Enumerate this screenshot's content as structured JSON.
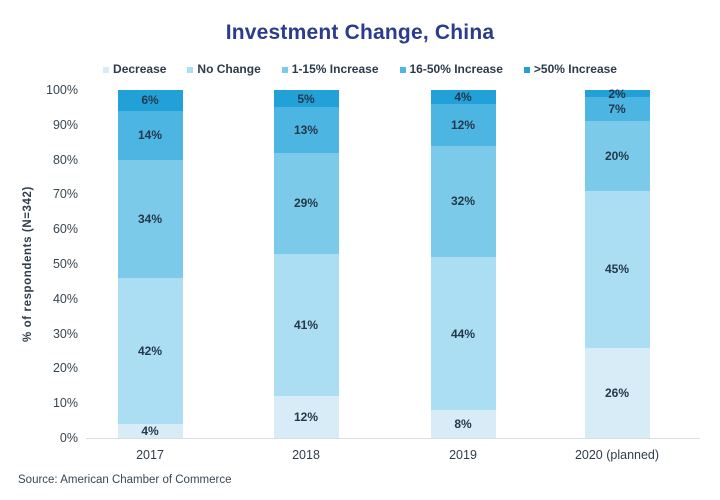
{
  "title": "Investment Change, China",
  "source_note": "Source: American Chamber of Commerce",
  "colors": {
    "title_navy": "#2b3c8c",
    "label_dark": "#24384a",
    "axis_gray": "#d9dde0"
  },
  "chart_data": {
    "type": "bar",
    "subtype": "stacked-percent-column",
    "title": "Investment Change, China",
    "categories": [
      "2017",
      "2018",
      "2019",
      "2020 (planned)"
    ],
    "series": [
      {
        "name": "Decrease",
        "color": "#d8ecf7",
        "values": [
          4,
          12,
          8,
          26
        ]
      },
      {
        "name": "No Change",
        "color": "#abddf3",
        "values": [
          42,
          41,
          44,
          45
        ]
      },
      {
        "name": "1-15% Increase",
        "color": "#7ccae9",
        "values": [
          34,
          29,
          32,
          20
        ]
      },
      {
        "name": "16-50% Increase",
        "color": "#4cb5e2",
        "values": [
          14,
          13,
          12,
          7
        ]
      },
      {
        "name": ">50% Increase",
        "color": "#22a1d8",
        "values": [
          6,
          5,
          4,
          2
        ]
      }
    ],
    "data_labels": [
      [
        "4%",
        "12%",
        "8%",
        "26%"
      ],
      [
        "42%",
        "41%",
        "44%",
        "45%"
      ],
      [
        "34%",
        "29%",
        "32%",
        "20%"
      ],
      [
        "14%",
        "13%",
        "12%",
        "7%"
      ],
      [
        "6%",
        "5%",
        "4%",
        "2%"
      ]
    ],
    "xlabel": "",
    "ylabel": "% of respondents (N=342)",
    "yticks": [
      "0%",
      "10%",
      "20%",
      "30%",
      "40%",
      "50%",
      "60%",
      "70%",
      "80%",
      "90%",
      "100%"
    ],
    "ylim": [
      0,
      100
    ],
    "grid": false,
    "legend_position": "top-center"
  }
}
